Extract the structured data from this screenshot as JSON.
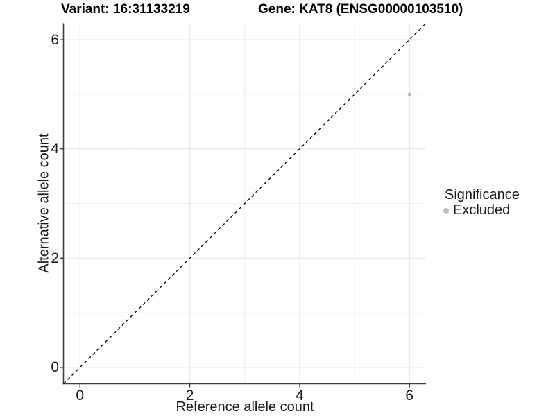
{
  "titles": {
    "variant": "Variant: 16:31133219",
    "gene": "Gene: KAT8 (ENSG00000103510)"
  },
  "chart_data": {
    "type": "scatter",
    "title_left": "Variant: 16:31133219",
    "title_right": "Gene: KAT8 (ENSG00000103510)",
    "xlabel": "Reference allele count",
    "ylabel": "Alternative allele count",
    "xlim": [
      -0.3,
      6.3
    ],
    "ylim": [
      -0.3,
      6.3
    ],
    "x_ticks": [
      0,
      2,
      4,
      6
    ],
    "y_ticks": [
      0,
      2,
      4,
      6
    ],
    "minor_gridlines_x": [
      1,
      3,
      5
    ],
    "minor_gridlines_y": [
      1,
      3,
      5
    ],
    "grid": true,
    "colors": {
      "background": "#ffffff",
      "major_gridline": "#e8e8e8",
      "minor_gridline": "#efefef",
      "axis_line": "#404040",
      "tick": "#404040",
      "reference_line": "#000000",
      "excluded_point": "#bdbdbd"
    },
    "reference_line": {
      "style": "dashed",
      "slope": 1,
      "intercept": 0
    },
    "series": [
      {
        "name": "Excluded",
        "color": "#bdbdbd",
        "points": [
          {
            "x": 6,
            "y": 5
          }
        ]
      }
    ],
    "legend": {
      "title": "Significance",
      "position": "right",
      "items": [
        {
          "label": "Excluded",
          "color": "#bdbdbd",
          "shape": "circle"
        }
      ]
    }
  }
}
